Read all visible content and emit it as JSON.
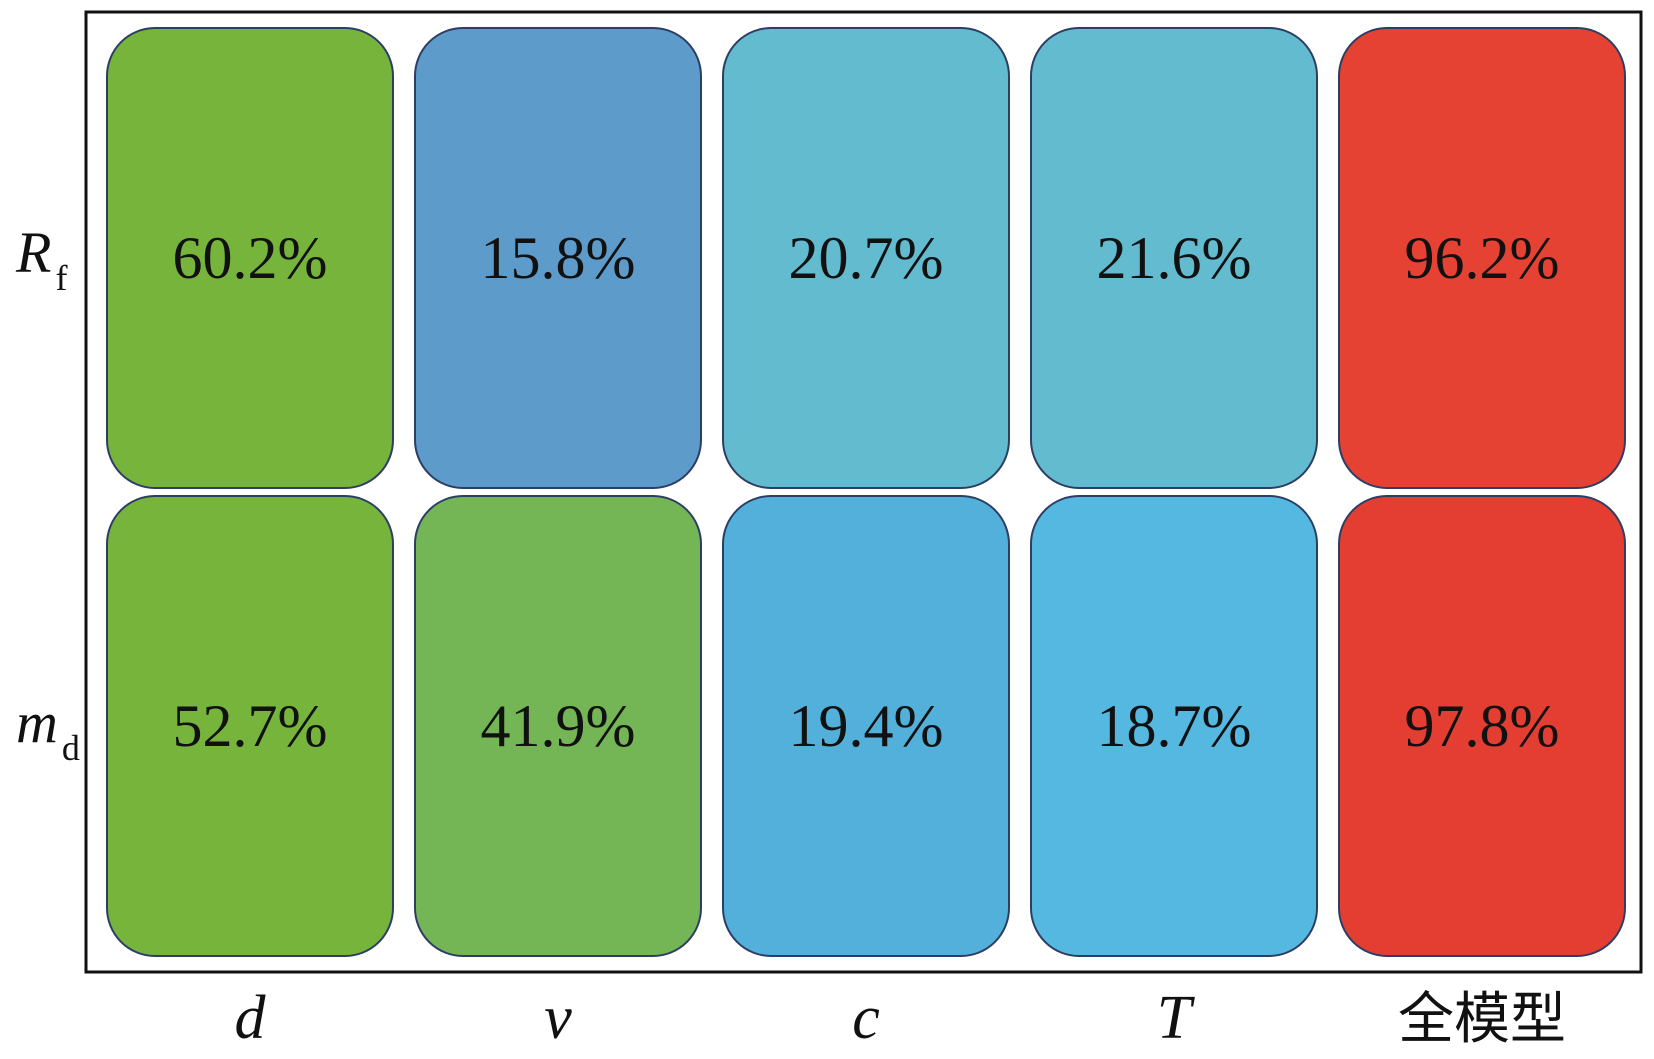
{
  "chart_data": {
    "type": "heatmap",
    "columns": [
      "d",
      "v",
      "c",
      "T",
      "全模型"
    ],
    "rows": [
      {
        "main": "R",
        "sub": "f"
      },
      {
        "main": "m",
        "sub": "d"
      }
    ],
    "values": [
      [
        60.2,
        15.8,
        20.7,
        21.6,
        96.2
      ],
      [
        52.7,
        41.9,
        19.4,
        18.7,
        97.8
      ]
    ],
    "labels": [
      [
        "60.2%",
        "15.8%",
        "20.7%",
        "21.6%",
        "96.2%"
      ],
      [
        "52.7%",
        "41.9%",
        "19.4%",
        "18.7%",
        "97.8%"
      ]
    ],
    "colors": [
      [
        "#77b43c",
        "#5c9bca",
        "#62bbcf",
        "#62bbcf",
        "#e54233"
      ],
      [
        "#77b43c",
        "#74b655",
        "#52b0db",
        "#55b8e1",
        "#e43d32"
      ]
    ],
    "unit": "%",
    "grid": false,
    "legend": "none"
  }
}
